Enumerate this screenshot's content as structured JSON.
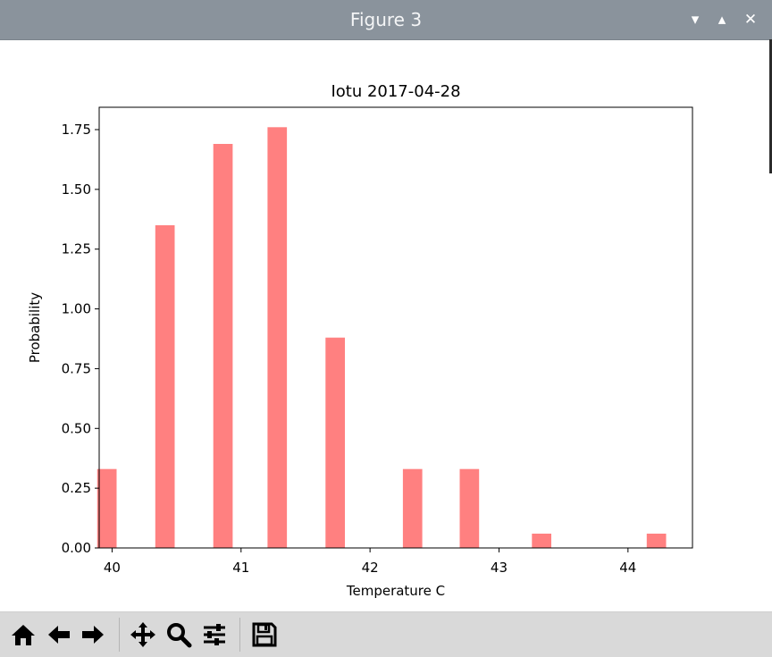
{
  "window": {
    "title": "Figure 3",
    "controls": {
      "minimize": "▾",
      "maximize": "▴",
      "close": "✕"
    }
  },
  "toolbar": {
    "buttons": [
      {
        "icon": "home-icon"
      },
      {
        "icon": "back-arrow-icon"
      },
      {
        "icon": "forward-arrow-icon"
      },
      {
        "icon": "pan-icon"
      },
      {
        "icon": "zoom-icon"
      },
      {
        "icon": "configure-subplots-icon"
      },
      {
        "icon": "save-icon"
      }
    ]
  },
  "chart_data": {
    "type": "bar",
    "title": "Iotu 2017-04-28",
    "xlabel": "Temperature C",
    "ylabel": "Probability",
    "xlim": [
      39.9,
      44.5
    ],
    "ylim": [
      0,
      1.75
    ],
    "xticks": [
      40,
      41,
      42,
      43,
      44
    ],
    "yticks": [
      "0.00",
      "0.25",
      "0.50",
      "0.75",
      "1.00",
      "1.25",
      "1.50",
      "1.75"
    ],
    "x": [
      39.96,
      40.41,
      40.86,
      41.28,
      41.73,
      42.33,
      42.77,
      43.33,
      44.22
    ],
    "values": [
      0.33,
      1.35,
      1.69,
      1.76,
      0.88,
      0.33,
      0.33,
      0.06,
      0.06
    ],
    "bar_width": 0.15,
    "color": "#ff8080",
    "grid": false,
    "legend": "none"
  }
}
